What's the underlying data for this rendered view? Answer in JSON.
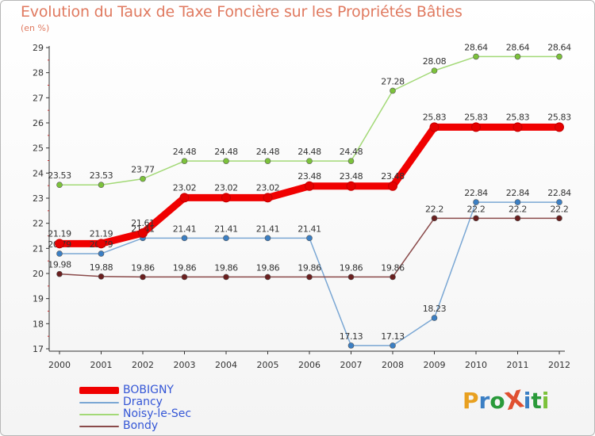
{
  "title": "Evolution du Taux de Taxe Foncière sur les Propriétés Bâties",
  "subtitle": "(en %)",
  "brand": "ProXiti",
  "chart_data": {
    "type": "line",
    "title": "Evolution du Taux de Taxe Foncière sur les Propriétés Bâties",
    "ylabel": "(en %)",
    "xlabel": "",
    "categories": [
      "2000",
      "2001",
      "2002",
      "2003",
      "2004",
      "2005",
      "2006",
      "2007",
      "2008",
      "2009",
      "2010",
      "2011",
      "2012"
    ],
    "ylim": [
      17,
      29
    ],
    "yticks": [
      "17",
      "18",
      "19",
      "20",
      "21",
      "22",
      "23",
      "24",
      "25",
      "26",
      "27",
      "28",
      "29"
    ],
    "grid": false,
    "legend_position": "bottom-left",
    "series": [
      {
        "name": "Noisy-le-Sec",
        "color": "#a3d977",
        "marker": "#7cc23b",
        "values": [
          23.53,
          23.53,
          23.77,
          24.48,
          24.48,
          24.48,
          24.48,
          24.48,
          27.28,
          28.08,
          28.64,
          28.64,
          28.64
        ],
        "labels": [
          "23.53",
          "23.53",
          "23.77",
          "24.48",
          "24.48",
          "24.48",
          "24.48",
          "24.48",
          "27.28",
          "28.08",
          "28.64",
          "28.64",
          "28.64"
        ]
      },
      {
        "name": "Drancy",
        "color": "#7aa7d4",
        "marker": "#3b7fc4",
        "values": [
          20.79,
          20.79,
          21.41,
          21.41,
          21.41,
          21.41,
          21.41,
          17.13,
          17.13,
          18.23,
          22.84,
          22.84,
          22.84
        ],
        "labels": [
          "20.79",
          "20.79",
          "21.41",
          "21.41",
          "21.41",
          "21.41",
          "21.41",
          "17.13",
          "17.13",
          "18.23",
          "22.84",
          "22.84",
          "22.84"
        ]
      },
      {
        "name": "Bondy",
        "color": "#8a4a4a",
        "marker": "#6a1f1f",
        "values": [
          19.98,
          19.88,
          19.86,
          19.86,
          19.86,
          19.86,
          19.86,
          19.86,
          19.86,
          22.2,
          22.2,
          22.2,
          22.2
        ],
        "labels": [
          "19.98",
          "19.88",
          "19.86",
          "19.86",
          "19.86",
          "19.86",
          "19.86",
          "19.86",
          "19.86",
          "22.2",
          "22.2",
          "22.2",
          "22.2"
        ]
      },
      {
        "name": "BOBIGNY",
        "color": "#f00000",
        "marker": "#e60000",
        "emphasis": true,
        "values": [
          21.19,
          21.19,
          21.61,
          23.02,
          23.02,
          23.02,
          23.48,
          23.48,
          23.48,
          25.83,
          25.83,
          25.83,
          25.83
        ],
        "labels": [
          "21.19",
          "21.19",
          "21.61",
          "23.02",
          "23.02",
          "23.02",
          "23.48",
          "23.48",
          "23.48",
          "25.83",
          "25.83",
          "25.83",
          "25.83"
        ]
      }
    ],
    "legend_order": [
      "BOBIGNY",
      "Drancy",
      "Noisy-le-Sec",
      "Bondy"
    ]
  },
  "logo_colors": [
    "#e8a020",
    "#3b7fc4",
    "#2a9a3a",
    "#e05030",
    "#3b7fc4",
    "#2a9a3a",
    "#7cc23b"
  ]
}
